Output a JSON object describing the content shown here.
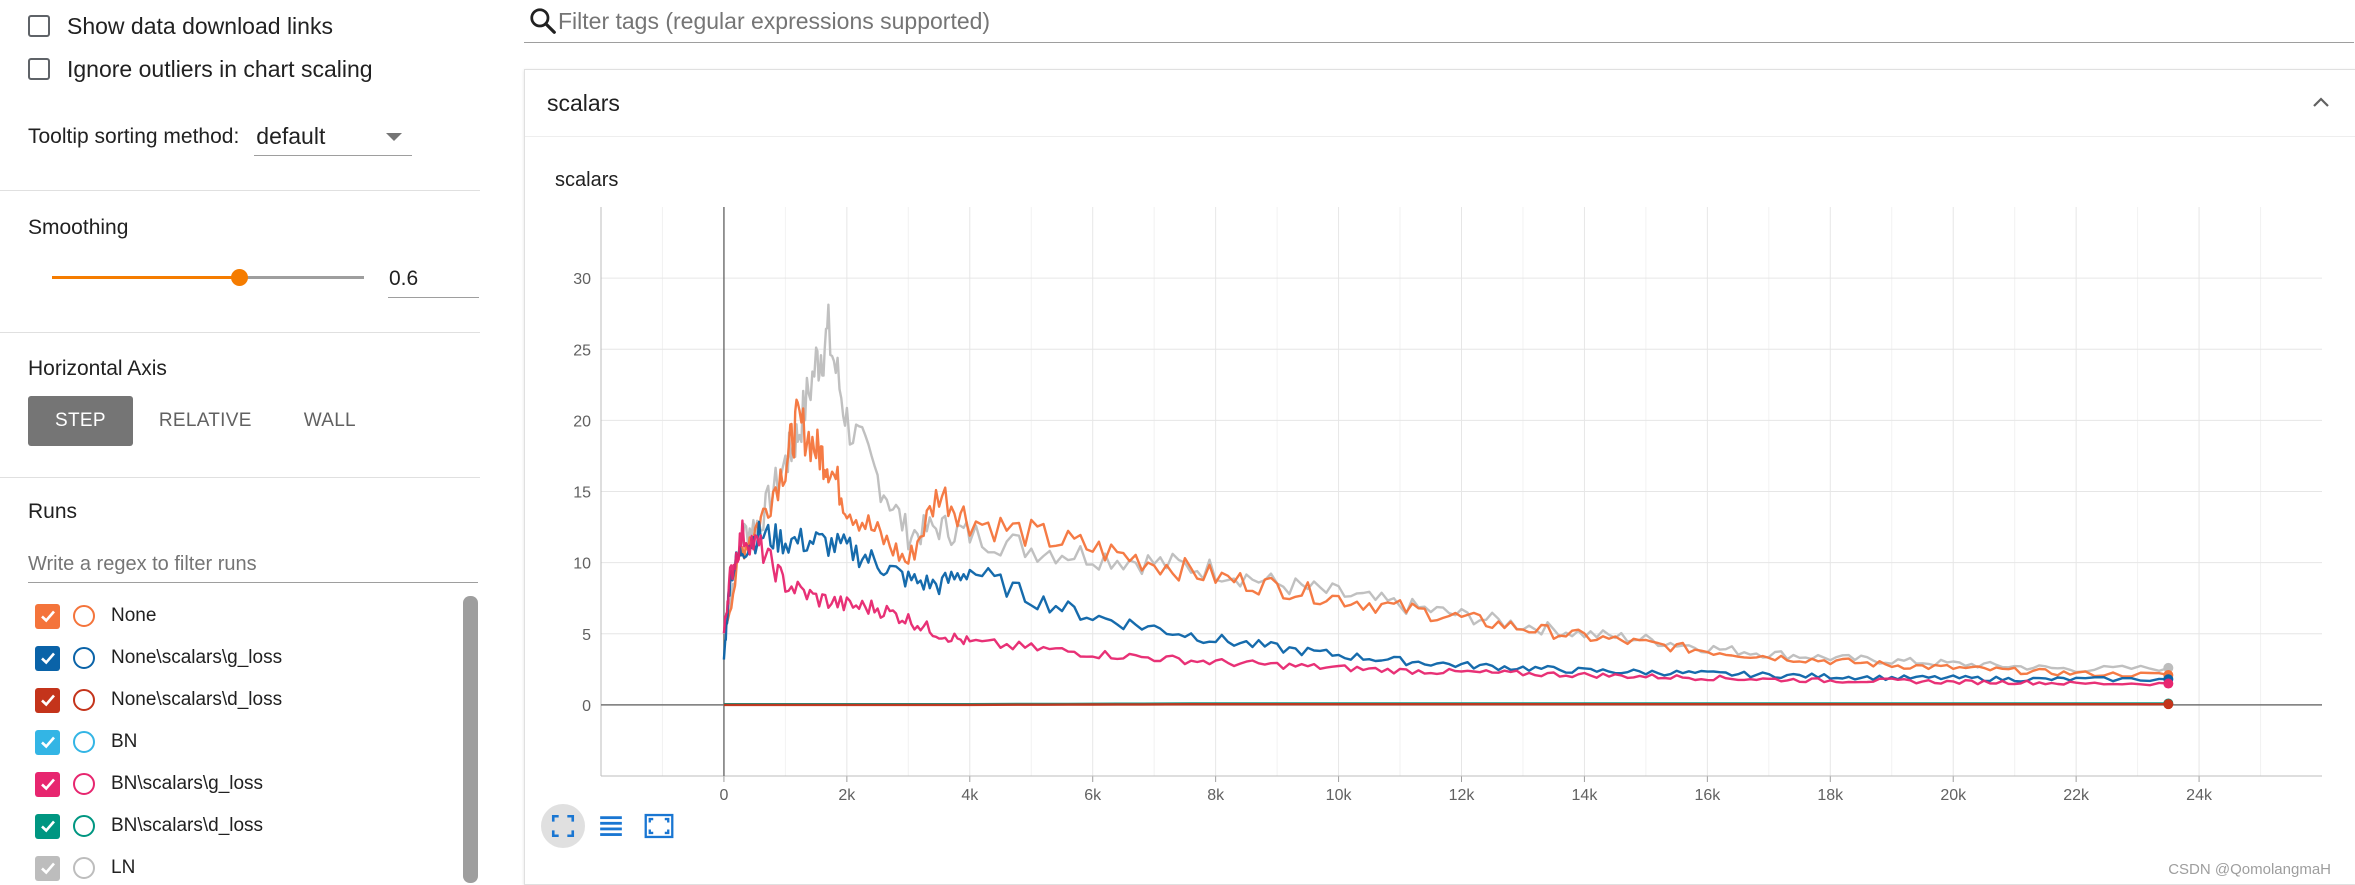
{
  "sidebar": {
    "show_download_label": "Show data download links",
    "ignore_outliers_label": "Ignore outliers in chart scaling",
    "tooltip_label": "Tooltip sorting method:",
    "tooltip_value": "default",
    "smoothing_title": "Smoothing",
    "smoothing_value": "0.6",
    "smoothing_fraction": 0.6,
    "horizontal_axis_title": "Horizontal Axis",
    "axis_buttons": [
      "STEP",
      "RELATIVE",
      "WALL"
    ],
    "axis_active": "STEP",
    "runs_title": "Runs",
    "runs_filter_placeholder": "Write a regex to filter runs",
    "runs": [
      {
        "label": "None",
        "color": "#f4743b",
        "checked": true
      },
      {
        "label": "None\\scalars\\g_loss",
        "color": "#0a63a8",
        "checked": true
      },
      {
        "label": "None\\scalars\\d_loss",
        "color": "#c4341b",
        "checked": true
      },
      {
        "label": "BN",
        "color": "#33b5e5",
        "checked": true
      },
      {
        "label": "BN\\scalars\\g_loss",
        "color": "#e7266f",
        "checked": true
      },
      {
        "label": "BN\\scalars\\d_loss",
        "color": "#009681",
        "checked": true
      },
      {
        "label": "LN",
        "color": "#bdbdbd",
        "checked": true
      }
    ]
  },
  "main": {
    "filter_placeholder": "Filter tags (regular expressions supported)",
    "card_title": "scalars",
    "chart_title": "scalars",
    "watermark": "CSDN @QomolangmaH"
  },
  "chart_data": {
    "type": "line",
    "title": "scalars",
    "xlabel": "",
    "ylabel": "",
    "x_ticks": [
      "0",
      "2k",
      "4k",
      "6k",
      "8k",
      "10k",
      "12k",
      "14k",
      "16k",
      "18k",
      "20k",
      "22k",
      "24k"
    ],
    "y_ticks": [
      "0",
      "5",
      "10",
      "15",
      "20",
      "25",
      "30"
    ],
    "xlim": [
      -2000,
      26000
    ],
    "ylim": [
      -5,
      35
    ],
    "grid": true,
    "series": [
      {
        "color": "#bdbdbd",
        "x": [
          0,
          300,
          600,
          1000,
          1200,
          1500,
          1700,
          2000,
          2500,
          3000,
          3500,
          4000,
          5000,
          6000,
          7000,
          8000,
          9000,
          10000,
          11000,
          12000,
          13000,
          14000,
          15000,
          16000,
          17000,
          18000,
          19000,
          20000,
          21000,
          22000,
          23500
        ],
        "y": [
          5,
          12,
          13,
          17,
          19,
          24,
          26,
          20,
          16,
          12,
          12.5,
          12,
          11,
          10.5,
          10,
          9.5,
          8.5,
          7.8,
          7,
          6.3,
          5.6,
          5,
          4.6,
          4,
          3.6,
          3.3,
          3.1,
          2.9,
          2.7,
          2.5,
          2.6
        ]
      },
      {
        "color": "#f4743b",
        "x": [
          0,
          300,
          600,
          1000,
          1200,
          1500,
          1700,
          2000,
          2500,
          3000,
          3500,
          4000,
          5000,
          6000,
          7000,
          8000,
          9000,
          10000,
          11000,
          12000,
          13000,
          14000,
          15000,
          16000,
          17000,
          18000,
          19000,
          20000,
          21000,
          22000,
          23500
        ],
        "y": [
          5,
          11,
          13,
          17,
          20,
          18,
          17,
          14,
          12,
          10,
          15,
          13,
          12,
          11,
          10,
          9,
          8.3,
          7.5,
          6.8,
          6.1,
          5.4,
          4.8,
          4.3,
          3.8,
          3.4,
          3.1,
          2.8,
          2.6,
          2.4,
          2.2,
          2.1
        ]
      },
      {
        "color": "#0a63a8",
        "x": [
          0,
          100,
          300,
          600,
          1000,
          1500,
          2000,
          2500,
          3000,
          3500,
          4000,
          5000,
          6000,
          7000,
          8000,
          9000,
          10000,
          11000,
          12000,
          13000,
          14000,
          15000,
          16000,
          17000,
          18000,
          19000,
          20000,
          21000,
          22000,
          23500
        ],
        "y": [
          3.2,
          9,
          11,
          12,
          11.5,
          11.5,
          11,
          10,
          8.8,
          8.4,
          9.5,
          7.5,
          6.2,
          5.4,
          4.6,
          4,
          3.5,
          3.1,
          2.8,
          2.6,
          2.4,
          2.3,
          2.2,
          2.1,
          2,
          1.9,
          1.9,
          1.8,
          1.8,
          1.8
        ]
      },
      {
        "color": "#e7266f",
        "x": [
          0,
          100,
          300,
          600,
          1000,
          1500,
          2000,
          2500,
          3000,
          3500,
          4000,
          5000,
          6000,
          7000,
          8000,
          9000,
          10000,
          11000,
          12000,
          13000,
          14000,
          15000,
          16000,
          17000,
          18000,
          19000,
          20000,
          21000,
          22000,
          23500
        ],
        "y": [
          5,
          9,
          12,
          11,
          8.5,
          7.5,
          7,
          6.8,
          6,
          5,
          4.4,
          4,
          3.6,
          3.3,
          3,
          2.8,
          2.6,
          2.4,
          2.3,
          2.2,
          2.1,
          2,
          1.9,
          1.8,
          1.7,
          1.7,
          1.6,
          1.6,
          1.5,
          1.5
        ]
      },
      {
        "color": "#009681",
        "x": [
          0,
          4000,
          8000,
          12000,
          16000,
          20000,
          23500
        ],
        "y": [
          0.05,
          0.05,
          0.1,
          0.1,
          0.1,
          0.1,
          0.1
        ]
      },
      {
        "color": "#c4341b",
        "x": [
          0,
          4000,
          8000,
          12000,
          16000,
          20000,
          23500
        ],
        "y": [
          0.0,
          0.0,
          0.05,
          0.05,
          0.05,
          0.05,
          0.05
        ]
      }
    ]
  }
}
